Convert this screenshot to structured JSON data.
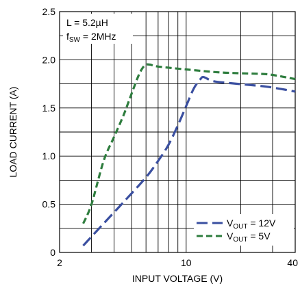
{
  "chart_data": {
    "type": "line",
    "title": "",
    "xlabel": "INPUT VOLTAGE (V)",
    "ylabel": "LOAD CURRENT (A)",
    "x_scale": "log",
    "xlim": [
      2,
      40
    ],
    "ylim": [
      0,
      2.5
    ],
    "x_ticks": [
      {
        "value": 2,
        "label": "2"
      },
      {
        "value": 10,
        "label": "10"
      },
      {
        "value": 40,
        "label": "40"
      }
    ],
    "y_ticks": [
      {
        "value": 0,
        "label": "0"
      },
      {
        "value": 0.5,
        "label": "0.5"
      },
      {
        "value": 1.0,
        "label": "1.0"
      },
      {
        "value": 1.5,
        "label": "1.5"
      },
      {
        "value": 2.0,
        "label": "2.0"
      },
      {
        "value": 2.5,
        "label": "2.5"
      }
    ],
    "grid": true,
    "annotation": {
      "l_line": "L = 5.2µH",
      "f_main": "f",
      "f_sub": "SW",
      "f_rest": " = 2MHz"
    },
    "legend_position": "bottom-right",
    "series": [
      {
        "v_main": "V",
        "v_sub": "OUT",
        "v_rest": " = 12V",
        "color": "#3a4fa0",
        "dash": "long",
        "points": [
          [
            2.7,
            0.07
          ],
          [
            3.5,
            0.3
          ],
          [
            4.5,
            0.52
          ],
          [
            6,
            0.78
          ],
          [
            7,
            0.95
          ],
          [
            8,
            1.12
          ],
          [
            9,
            1.32
          ],
          [
            10,
            1.52
          ],
          [
            11,
            1.7
          ],
          [
            12,
            1.8
          ],
          [
            12.5,
            1.82
          ],
          [
            14,
            1.78
          ],
          [
            17,
            1.76
          ],
          [
            22,
            1.74
          ],
          [
            28,
            1.72
          ],
          [
            35,
            1.69
          ],
          [
            40,
            1.67
          ]
        ]
      },
      {
        "v_main": "V",
        "v_sub": "OUT",
        "v_rest": " = 5V",
        "color": "#2e7d3e",
        "dash": "short",
        "points": [
          [
            2.7,
            0.3
          ],
          [
            3,
            0.5
          ],
          [
            3.5,
            0.95
          ],
          [
            4,
            1.2
          ],
          [
            4.5,
            1.42
          ],
          [
            5,
            1.65
          ],
          [
            5.5,
            1.85
          ],
          [
            5.9,
            1.94
          ],
          [
            6.3,
            1.95
          ],
          [
            7,
            1.93
          ],
          [
            10,
            1.9
          ],
          [
            15,
            1.87
          ],
          [
            20,
            1.86
          ],
          [
            28,
            1.85
          ],
          [
            35,
            1.82
          ],
          [
            40,
            1.8
          ]
        ]
      }
    ]
  }
}
